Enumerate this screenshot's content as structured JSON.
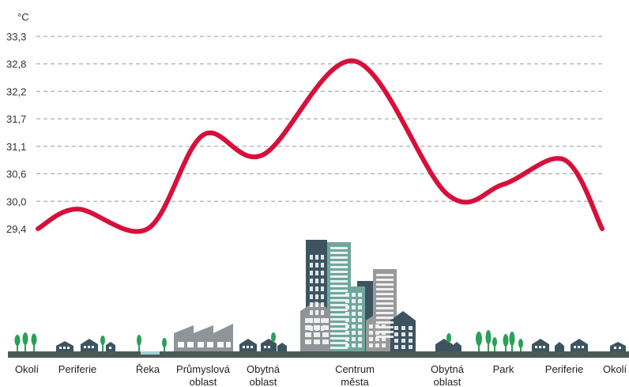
{
  "chart_data": {
    "type": "line",
    "unit_label": "°C",
    "y_ticks": [
      "33,3",
      "32,8",
      "32,2",
      "31,7",
      "31,1",
      "30,6",
      "30,0",
      "29,4"
    ],
    "ylim": [
      29.4,
      33.3
    ],
    "grid": true,
    "series": [
      {
        "color": "#d7103a",
        "points": [
          {
            "x": "Okolí",
            "y": 29.4
          },
          {
            "x": "Periferie",
            "y": 29.8
          },
          {
            "x": "Řeka",
            "y": 29.4
          },
          {
            "x": "Průmyslová oblast",
            "y": 31.3
          },
          {
            "x": "Obytná oblast",
            "y": 30.9
          },
          {
            "x": "Centrum města",
            "y": 32.8
          },
          {
            "x": "Obytná oblast",
            "y": 30.1
          },
          {
            "x": "Park",
            "y": 30.3
          },
          {
            "x": "Periferie",
            "y": 30.8
          },
          {
            "x": "Okolí",
            "y": 29.4
          }
        ]
      }
    ],
    "zones": [
      {
        "lines": [
          "Okolí"
        ]
      },
      {
        "lines": [
          "Periferie"
        ]
      },
      {
        "lines": [
          "Řeka"
        ]
      },
      {
        "lines": [
          "Průmyslová",
          "oblast"
        ]
      },
      {
        "lines": [
          "Obytná",
          "oblast"
        ]
      },
      {
        "lines": [
          "Centrum",
          "města"
        ]
      },
      {
        "lines": [
          "Obytná",
          "oblast"
        ]
      },
      {
        "lines": [
          "Park"
        ]
      },
      {
        "lines": [
          "Periferie"
        ]
      },
      {
        "lines": [
          "Okolí"
        ]
      }
    ],
    "colors": {
      "line": "#d7103a",
      "ground": "#4a5a57",
      "tree": "#27a154",
      "house": "#3d5460",
      "factory": "#8e9497",
      "water": "#9fd3d8",
      "tower_dark": "#3d5460",
      "tower_teal": "#6fa79e",
      "tower_gray": "#9a9a9a"
    }
  }
}
